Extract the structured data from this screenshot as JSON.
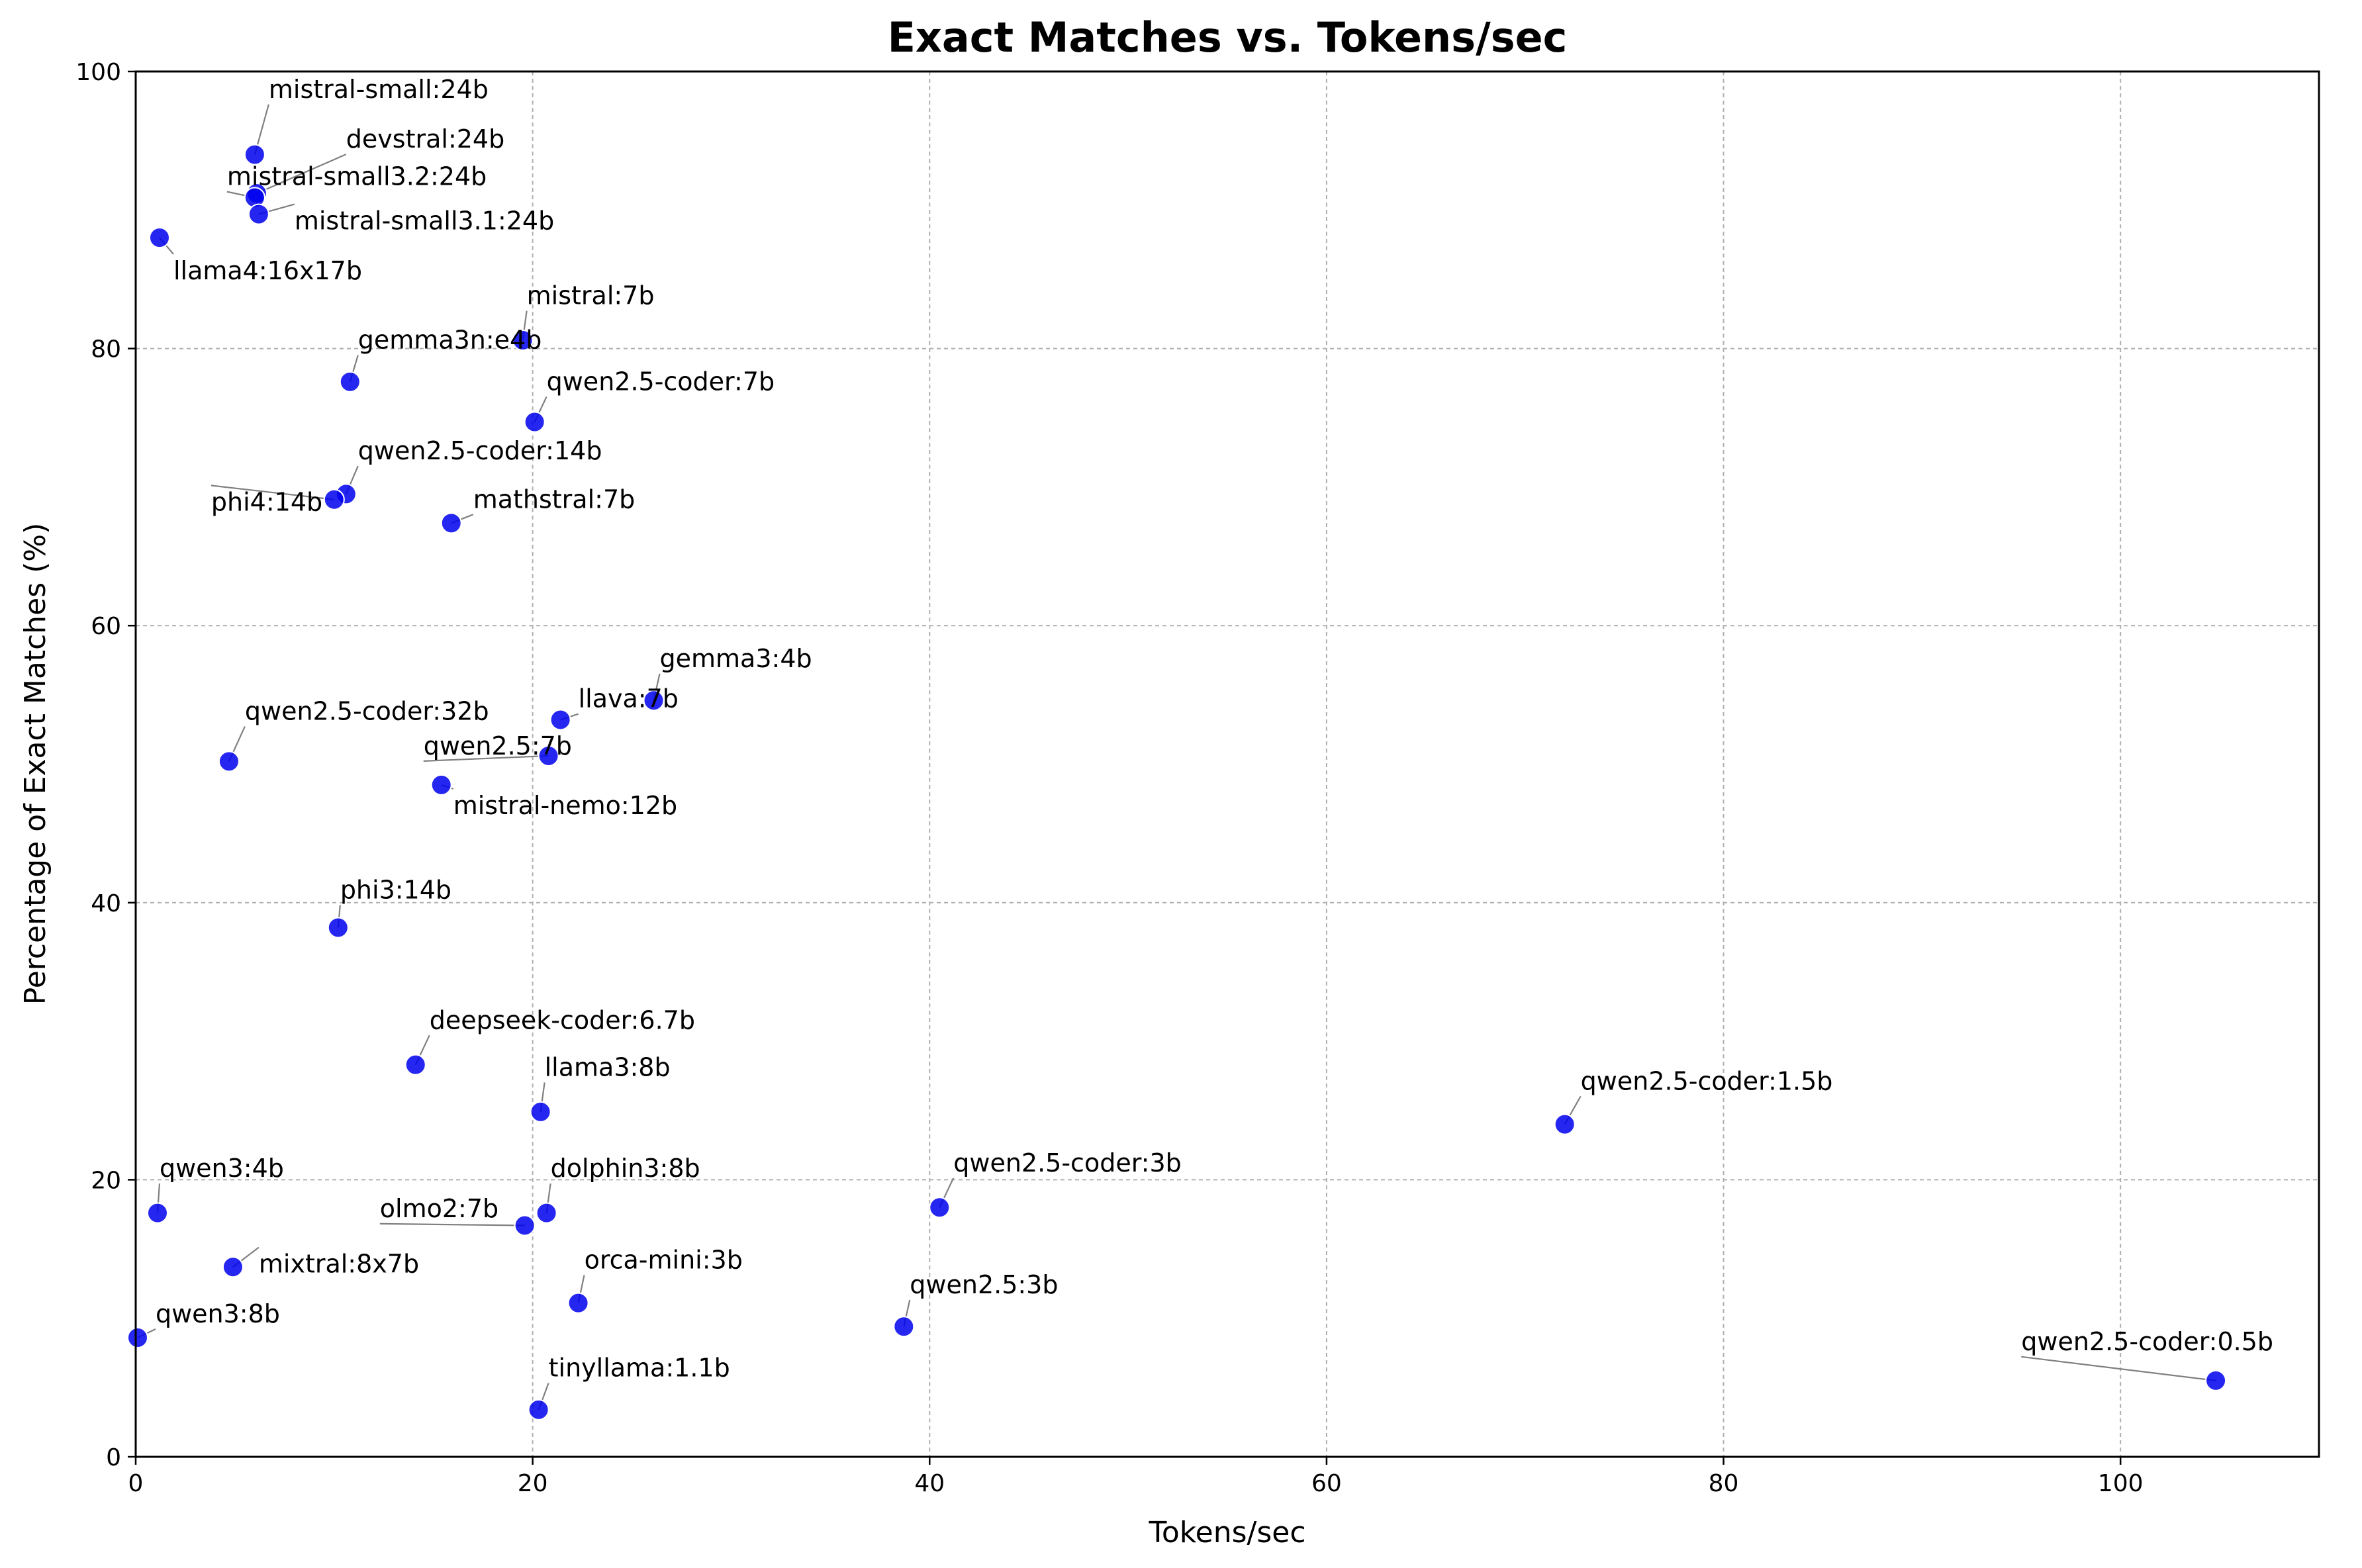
{
  "chart_data": {
    "type": "scatter",
    "title": "Exact Matches vs. Tokens/sec",
    "xlabel": "Tokens/sec",
    "ylabel": "Percentage of Exact Matches (%)",
    "xlim": [
      0,
      110
    ],
    "ylim": [
      0,
      100
    ],
    "xticks": [
      0,
      20,
      40,
      60,
      80,
      100
    ],
    "yticks": [
      0,
      20,
      40,
      60,
      80,
      100
    ],
    "grid": true,
    "point_color": "#0000ee",
    "points": [
      {
        "label": "mistral-small:24b",
        "x": 6.0,
        "y": 94.0,
        "label_x": 6.7,
        "label_y": 98.1
      },
      {
        "label": "devstral:24b",
        "x": 6.1,
        "y": 91.2,
        "label_x": 10.6,
        "label_y": 94.5
      },
      {
        "label": "mistral-small3.2:24b",
        "x": 6.0,
        "y": 90.9,
        "label_x": 4.6,
        "label_y": 91.8
      },
      {
        "label": "mistral-small3.1:24b",
        "x": 6.2,
        "y": 89.7,
        "label_x": 8.0,
        "label_y": 88.6
      },
      {
        "label": "llama4:16x17b",
        "x": 1.2,
        "y": 88.0,
        "label_x": 1.9,
        "label_y": 85.0
      },
      {
        "label": "mistral:7b",
        "x": 19.5,
        "y": 80.6,
        "label_x": 19.7,
        "label_y": 83.2
      },
      {
        "label": "gemma3n:e4b",
        "x": 10.8,
        "y": 77.6,
        "label_x": 11.2,
        "label_y": 80.0
      },
      {
        "label": "qwen2.5-coder:7b",
        "x": 20.1,
        "y": 74.7,
        "label_x": 20.7,
        "label_y": 77.0
      },
      {
        "label": "qwen2.5-coder:14b",
        "x": 10.6,
        "y": 69.5,
        "label_x": 11.2,
        "label_y": 72.0
      },
      {
        "label": "phi4:14b",
        "x": 10.0,
        "y": 69.1,
        "label_x": 3.8,
        "label_y": 68.3
      },
      {
        "label": "mathstral:7b",
        "x": 15.9,
        "y": 67.4,
        "label_x": 17.0,
        "label_y": 68.5
      },
      {
        "label": "gemma3:4b",
        "x": 26.1,
        "y": 54.6,
        "label_x": 26.4,
        "label_y": 57.0
      },
      {
        "label": "llava:7b",
        "x": 21.4,
        "y": 53.2,
        "label_x": 22.3,
        "label_y": 54.1
      },
      {
        "label": "qwen2.5-coder:32b",
        "x": 4.7,
        "y": 50.2,
        "label_x": 5.5,
        "label_y": 53.2
      },
      {
        "label": "qwen2.5:7b",
        "x": 20.8,
        "y": 50.6,
        "label_x": 14.5,
        "label_y": 50.7
      },
      {
        "label": "mistral-nemo:12b",
        "x": 15.4,
        "y": 48.5,
        "label_x": 16.0,
        "label_y": 46.4
      },
      {
        "label": "phi3:14b",
        "x": 10.2,
        "y": 38.2,
        "label_x": 10.3,
        "label_y": 40.3
      },
      {
        "label": "deepseek-coder:6.7b",
        "x": 14.1,
        "y": 28.3,
        "label_x": 14.8,
        "label_y": 30.9
      },
      {
        "label": "llama3:8b",
        "x": 20.4,
        "y": 24.9,
        "label_x": 20.6,
        "label_y": 27.5
      },
      {
        "label": "qwen2.5-coder:1.5b",
        "x": 72.0,
        "y": 24.0,
        "label_x": 72.8,
        "label_y": 26.5
      },
      {
        "label": "qwen3:4b",
        "x": 1.1,
        "y": 17.6,
        "label_x": 1.2,
        "label_y": 20.2
      },
      {
        "label": "dolphin3:8b",
        "x": 20.7,
        "y": 17.6,
        "label_x": 20.9,
        "label_y": 20.2
      },
      {
        "label": "olmo2:7b",
        "x": 19.6,
        "y": 16.7,
        "label_x": 12.3,
        "label_y": 17.3
      },
      {
        "label": "qwen2.5-coder:3b",
        "x": 40.5,
        "y": 18.0,
        "label_x": 41.2,
        "label_y": 20.6
      },
      {
        "label": "mixtral:8x7b",
        "x": 4.9,
        "y": 13.7,
        "label_x": 6.2,
        "label_y": 13.3
      },
      {
        "label": "orca-mini:3b",
        "x": 22.3,
        "y": 11.1,
        "label_x": 22.6,
        "label_y": 13.6
      },
      {
        "label": "qwen2.5:3b",
        "x": 38.7,
        "y": 9.4,
        "label_x": 39.0,
        "label_y": 11.8
      },
      {
        "label": "qwen3:8b",
        "x": 0.1,
        "y": 8.6,
        "label_x": 1.0,
        "label_y": 9.7
      },
      {
        "label": "tinyllama:1.1b",
        "x": 20.3,
        "y": 3.4,
        "label_x": 20.8,
        "label_y": 5.8
      },
      {
        "label": "qwen2.5-coder:0.5b",
        "x": 104.8,
        "y": 5.5,
        "label_x": 95.0,
        "label_y": 7.7
      }
    ]
  }
}
